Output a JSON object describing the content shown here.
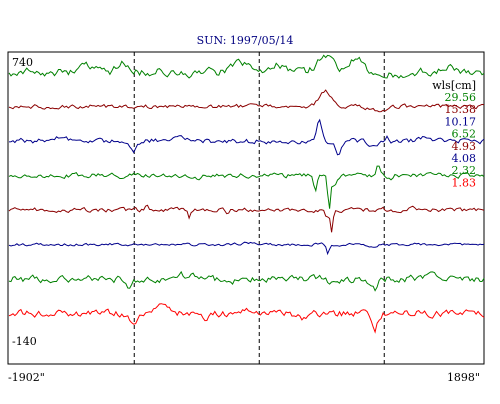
{
  "chart_data": {
    "type": "line",
    "title": "SUN: 1997/05/14",
    "y_top_label": "740",
    "y_bottom_label": "-140",
    "x_left_label": "-1902\"",
    "x_right_label": "1898\"",
    "x_range": [
      -1902,
      1898
    ],
    "y_range": [
      -140,
      740
    ],
    "legend_header": "wls[cm]",
    "legend_placement": "right",
    "grid": false,
    "dashed_lines_x": [
      -900,
      100,
      1100
    ],
    "series": [
      {
        "name": "29.56",
        "color": "#008000",
        "events": [
          [
            -1290,
            6,
            70
          ],
          [
            -1000,
            8,
            60
          ],
          [
            -420,
            -3,
            50
          ],
          [
            -50,
            9,
            80
          ],
          [
            250,
            7,
            60
          ],
          [
            620,
            15,
            90
          ],
          [
            880,
            14,
            70
          ],
          [
            1200,
            -4,
            60
          ],
          [
            1620,
            6,
            80
          ]
        ],
        "noise": 3.5
      },
      {
        "name": "15.38",
        "color": "#8b0000",
        "events": [
          [
            630,
            16,
            70
          ],
          [
            860,
            3,
            40
          ],
          [
            1050,
            -5,
            80
          ]
        ],
        "noise": 1.8
      },
      {
        "name": "10.17",
        "color": "#00008b",
        "events": [
          [
            -1500,
            4,
            90
          ],
          [
            -900,
            -9,
            35
          ],
          [
            -560,
            4,
            80
          ],
          [
            200,
            -2,
            60
          ],
          [
            580,
            22,
            32
          ],
          [
            730,
            -13,
            30
          ],
          [
            1000,
            -7,
            45
          ],
          [
            1120,
            5,
            22
          ],
          [
            1420,
            3,
            60
          ]
        ],
        "noise": 2.2
      },
      {
        "name": "6.52",
        "color": "#008000",
        "events": [
          [
            -1000,
            -4,
            40
          ],
          [
            -400,
            -2,
            60
          ],
          [
            550,
            -14,
            18
          ],
          [
            660,
            -32,
            16
          ],
          [
            700,
            -10,
            25
          ],
          [
            1050,
            12,
            18
          ],
          [
            1150,
            -4,
            20
          ]
        ],
        "noise": 2.0
      },
      {
        "name": "4.93",
        "color": "#8b0000",
        "events": [
          [
            -800,
            4,
            20
          ],
          [
            -460,
            -10,
            12
          ],
          [
            -150,
            -4,
            20
          ],
          [
            640,
            -6,
            25
          ],
          [
            680,
            -22,
            14
          ],
          [
            1090,
            4,
            18
          ],
          [
            1320,
            3,
            20
          ]
        ],
        "noise": 1.8
      },
      {
        "name": "4.08",
        "color": "#00008b",
        "events": [
          [
            650,
            -9,
            16
          ],
          [
            0,
            2,
            60
          ],
          [
            1000,
            -2,
            50
          ]
        ],
        "noise": 1.2
      },
      {
        "name": "2.32",
        "color": "#008000",
        "events": [
          [
            -950,
            -9,
            40
          ],
          [
            -500,
            4,
            90
          ],
          [
            -150,
            -4,
            50
          ],
          [
            670,
            -7,
            30
          ],
          [
            1020,
            -11,
            40
          ],
          [
            1500,
            5,
            80
          ]
        ],
        "noise": 3.0
      },
      {
        "name": "1.83",
        "color": "#ff0000",
        "events": [
          [
            -900,
            -12,
            35
          ],
          [
            -700,
            7,
            90
          ],
          [
            -350,
            -5,
            60
          ],
          [
            0,
            4,
            70
          ],
          [
            460,
            -5,
            60
          ],
          [
            1020,
            -18,
            35
          ],
          [
            1200,
            4,
            60
          ]
        ],
        "noise": 3.0
      }
    ]
  }
}
